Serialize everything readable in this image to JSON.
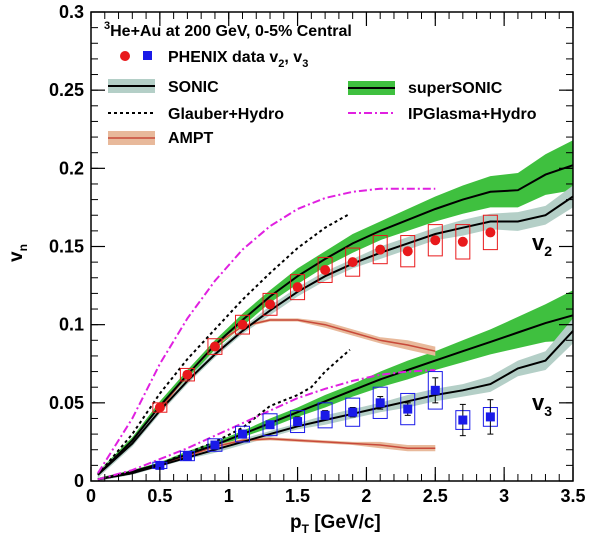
{
  "chart_data": {
    "type": "line",
    "title_sup": "3",
    "title": "He+Au at 200 GeV, 0-5% Central",
    "xlabel_main": "p",
    "xlabel_sub": "T",
    "xlabel_unit": " [GeV/c]",
    "ylabel_main": "v",
    "ylabel_sub": "n",
    "xlim": [
      0,
      3.5
    ],
    "ylim": [
      0,
      0.3
    ],
    "xticks": [
      0,
      0.5,
      1,
      1.5,
      2,
      2.5,
      3,
      3.5
    ],
    "xtick_labels": [
      "0",
      "0.5",
      "1",
      "1.5",
      "2",
      "2.5",
      "3",
      "3.5"
    ],
    "yticks": [
      0,
      0.05,
      0.1,
      0.15,
      0.2,
      0.25,
      0.3
    ],
    "ytick_labels": [
      "0",
      "0.05",
      "0.1",
      "0.15",
      "0.2",
      "0.25",
      "0.3"
    ],
    "harmonic_labels": {
      "v2": {
        "main": "v",
        "sub": "2"
      },
      "v3": {
        "main": "v",
        "sub": "3"
      }
    },
    "legend": {
      "phenix": {
        "main": "PHENIX data v",
        "sub1": "2",
        "sep": ", v",
        "sub2": "3"
      },
      "sonic": "SONIC",
      "supersonic": "superSONIC",
      "glauber": "Glauber+Hydro",
      "ipglasma": "IPGlasma+Hydro",
      "ampt": "AMPT"
    },
    "colors": {
      "phenix_v2": "#e8191b",
      "phenix_v3": "#1a1ae8",
      "sonic_band": "#b4cfc7",
      "supersonic_band": "#3fc03f",
      "ipglasma": "#e020e0",
      "ampt_band": "#e8b99b",
      "ampt_line": "#c84a3a"
    },
    "phenix_v2": {
      "x": [
        0.5,
        0.7,
        0.9,
        1.1,
        1.3,
        1.5,
        1.7,
        1.9,
        2.1,
        2.3,
        2.5,
        2.7,
        2.9
      ],
      "y": [
        0.047,
        0.068,
        0.086,
        0.1,
        0.113,
        0.124,
        0.135,
        0.14,
        0.148,
        0.147,
        0.154,
        0.153,
        0.159
      ],
      "syst": [
        0.003,
        0.004,
        0.005,
        0.006,
        0.007,
        0.008,
        0.008,
        0.009,
        0.009,
        0.01,
        0.01,
        0.011,
        0.011
      ]
    },
    "phenix_v3": {
      "x": [
        0.5,
        0.7,
        0.9,
        1.1,
        1.3,
        1.5,
        1.7,
        1.9,
        2.1,
        2.3,
        2.5,
        2.7,
        2.9
      ],
      "y": [
        0.01,
        0.016,
        0.023,
        0.03,
        0.036,
        0.038,
        0.042,
        0.044,
        0.05,
        0.046,
        0.058,
        0.039,
        0.041
      ],
      "syst": [
        0.002,
        0.003,
        0.004,
        0.005,
        0.007,
        0.007,
        0.008,
        0.009,
        0.01,
        0.01,
        0.012,
        0.006,
        0.006
      ],
      "stat": [
        0.001,
        0.001,
        0.001,
        0.002,
        0.002,
        0.003,
        0.003,
        0.003,
        0.004,
        0.004,
        0.008,
        0.01,
        0.011
      ]
    },
    "sonic_v2": {
      "x": [
        0.05,
        0.3,
        0.5,
        0.7,
        0.9,
        1.1,
        1.3,
        1.5,
        1.7,
        1.9,
        2.1,
        2.3,
        2.5,
        2.7,
        2.9,
        3.1,
        3.3,
        3.5
      ],
      "y": [
        0.004,
        0.024,
        0.045,
        0.064,
        0.081,
        0.096,
        0.109,
        0.121,
        0.131,
        0.139,
        0.146,
        0.152,
        0.158,
        0.162,
        0.166,
        0.166,
        0.17,
        0.182
      ],
      "w": [
        0.002,
        0.002,
        0.002,
        0.002,
        0.002,
        0.002,
        0.003,
        0.003,
        0.003,
        0.003,
        0.004,
        0.004,
        0.004,
        0.005,
        0.005,
        0.006,
        0.006,
        0.007
      ]
    },
    "supersonic_v2": {
      "x": [
        0.05,
        0.3,
        0.5,
        0.7,
        0.9,
        1.1,
        1.3,
        1.5,
        1.7,
        1.9,
        2.1,
        2.3,
        2.5,
        2.7,
        2.9,
        3.1,
        3.3,
        3.5
      ],
      "y": [
        0.004,
        0.026,
        0.048,
        0.068,
        0.087,
        0.103,
        0.118,
        0.131,
        0.142,
        0.152,
        0.16,
        0.167,
        0.174,
        0.18,
        0.185,
        0.186,
        0.196,
        0.202
      ],
      "w": [
        0.002,
        0.002,
        0.003,
        0.003,
        0.003,
        0.004,
        0.004,
        0.005,
        0.005,
        0.006,
        0.006,
        0.007,
        0.008,
        0.009,
        0.01,
        0.011,
        0.013,
        0.016
      ]
    },
    "sonic_v3": {
      "x": [
        0.05,
        0.3,
        0.5,
        0.7,
        0.9,
        1.1,
        1.3,
        1.5,
        1.7,
        1.9,
        2.1,
        2.3,
        2.5,
        2.7,
        2.9,
        3.1,
        3.3,
        3.5
      ],
      "y": [
        0.001,
        0.005,
        0.01,
        0.015,
        0.02,
        0.025,
        0.03,
        0.035,
        0.039,
        0.043,
        0.047,
        0.051,
        0.055,
        0.058,
        0.062,
        0.072,
        0.077,
        0.096
      ],
      "w": [
        0.001,
        0.001,
        0.001,
        0.001,
        0.002,
        0.002,
        0.002,
        0.002,
        0.003,
        0.003,
        0.003,
        0.004,
        0.004,
        0.004,
        0.005,
        0.005,
        0.006,
        0.008
      ]
    },
    "supersonic_v3": {
      "x": [
        0.05,
        0.3,
        0.5,
        0.7,
        0.9,
        1.1,
        1.3,
        1.5,
        1.7,
        1.9,
        2.1,
        2.3,
        2.5,
        2.7,
        2.9,
        3.1,
        3.3,
        3.5
      ],
      "y": [
        0.001,
        0.006,
        0.011,
        0.017,
        0.023,
        0.03,
        0.037,
        0.044,
        0.051,
        0.058,
        0.065,
        0.071,
        0.077,
        0.083,
        0.089,
        0.095,
        0.101,
        0.106
      ],
      "w": [
        0.001,
        0.001,
        0.001,
        0.002,
        0.002,
        0.002,
        0.003,
        0.003,
        0.004,
        0.004,
        0.005,
        0.006,
        0.006,
        0.007,
        0.008,
        0.01,
        0.012,
        0.016
      ]
    },
    "glauber_v2": {
      "x": [
        0.05,
        0.3,
        0.5,
        0.7,
        0.9,
        1.1,
        1.3,
        1.5,
        1.7,
        1.88
      ],
      "y": [
        0.004,
        0.03,
        0.056,
        0.078,
        0.097,
        0.116,
        0.133,
        0.149,
        0.162,
        0.171
      ]
    },
    "glauber_v3": {
      "x": [
        0.05,
        0.3,
        0.5,
        0.7,
        0.9,
        1.1,
        1.3,
        1.5,
        1.6,
        1.7,
        1.88
      ],
      "y": [
        0.001,
        0.005,
        0.011,
        0.018,
        0.025,
        0.034,
        0.048,
        0.055,
        0.06,
        0.07,
        0.084
      ]
    },
    "ipglasma_v2": {
      "x": [
        0.05,
        0.3,
        0.5,
        0.7,
        0.9,
        1.1,
        1.3,
        1.5,
        1.7,
        1.9,
        2.1,
        2.3,
        2.5
      ],
      "y": [
        0.005,
        0.04,
        0.075,
        0.104,
        0.128,
        0.148,
        0.163,
        0.174,
        0.181,
        0.185,
        0.187,
        0.187,
        0.187
      ]
    },
    "ipglasma_v3": {
      "x": [
        0.05,
        0.3,
        0.5,
        0.7,
        0.9,
        1.1,
        1.3,
        1.5,
        1.7,
        1.9,
        2.1,
        2.3,
        2.5
      ],
      "y": [
        0.001,
        0.007,
        0.014,
        0.021,
        0.029,
        0.037,
        0.045,
        0.053,
        0.059,
        0.064,
        0.068,
        0.07,
        0.071
      ]
    },
    "ampt_v2": {
      "x": [
        0.5,
        0.7,
        0.9,
        1.1,
        1.3,
        1.5,
        1.7,
        1.9,
        2.1,
        2.3,
        2.5
      ],
      "y": [
        0.046,
        0.068,
        0.087,
        0.099,
        0.103,
        0.103,
        0.1,
        0.095,
        0.09,
        0.087,
        0.083
      ],
      "w": [
        0.001,
        0.001,
        0.001,
        0.001,
        0.001,
        0.001,
        0.002,
        0.002,
        0.002,
        0.003,
        0.003
      ]
    },
    "ampt_v3": {
      "x": [
        0.5,
        0.7,
        0.9,
        1.1,
        1.3,
        1.5,
        1.7,
        1.9,
        2.1,
        2.3,
        2.5
      ],
      "y": [
        0.01,
        0.016,
        0.022,
        0.026,
        0.027,
        0.026,
        0.025,
        0.024,
        0.023,
        0.021,
        0.021
      ],
      "w": [
        0.001,
        0.001,
        0.001,
        0.001,
        0.001,
        0.001,
        0.001,
        0.001,
        0.002,
        0.002,
        0.002
      ]
    }
  }
}
